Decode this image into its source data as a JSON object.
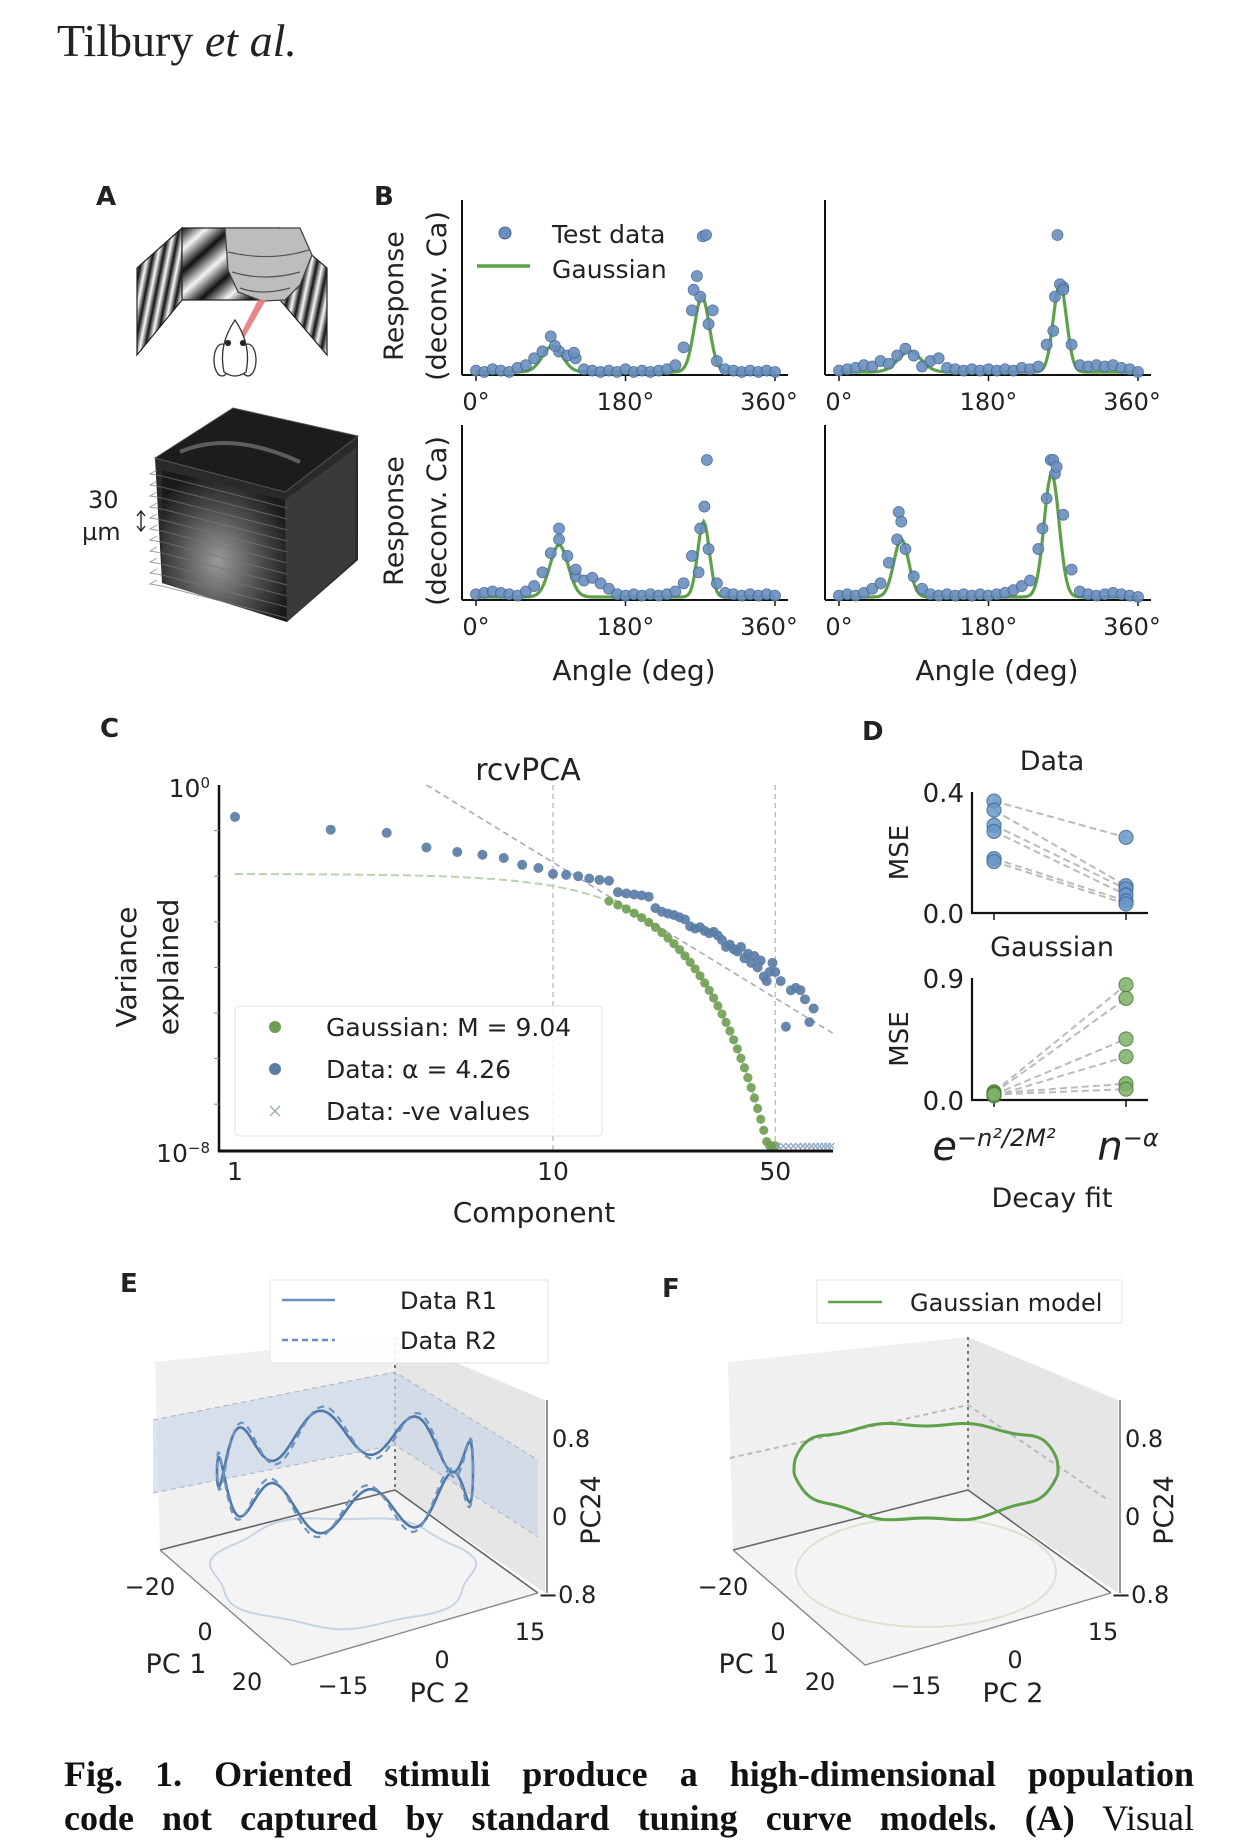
{
  "header": {
    "author": "Tilbury",
    "etal": "et al."
  },
  "panel_labels": {
    "a": "A",
    "b": "B",
    "c": "C",
    "d": "D",
    "e": "E",
    "f": "F"
  },
  "panel_a": {
    "scale_value": "30",
    "scale_unit": "µm"
  },
  "caption": {
    "line1": "Fig. 1. Oriented stimuli produce a high-dimensional population",
    "line2_bold": "code not captured by standard tuning curve models. (A)",
    "line2_rest": "Visual"
  },
  "colors": {
    "data_blue": "#6a8fbf",
    "data_blue_edge": "#44678f",
    "gaussian_green": "#5fa04a",
    "green_point": "#6e9e52",
    "band_blue": "#c9d6e8"
  },
  "chart_data": [
    {
      "id": "B1",
      "type": "scatter+line",
      "ylabel_line1": "Response",
      "ylabel_line2": "(deconv. Ca)",
      "xlabel": "",
      "xticks": [
        "0°",
        "180°",
        "360°"
      ],
      "xlim": [
        0,
        360
      ],
      "ylim": [
        0,
        1.25
      ],
      "angle_step": 10,
      "legend": {
        "points": "Test data",
        "line": "Gaussian"
      },
      "values": [
        0.01,
        0.0,
        0.02,
        0.01,
        0.0,
        0.03,
        0.05,
        0.1,
        0.15,
        0.26,
        0.15,
        0.12,
        0.1,
        0.02,
        0.01,
        0.0,
        0.01,
        0.0,
        0.02,
        0.0,
        0.01,
        0.0,
        0.01,
        0.02,
        0.05,
        0.18,
        0.45,
        0.55,
        0.35,
        0.08,
        0.02,
        0.01,
        0.0,
        0.01,
        0.0,
        0.01,
        0.0
      ],
      "extra_points": [
        [
          262,
          0.6
        ],
        [
          266,
          0.7
        ],
        [
          273,
          0.99
        ],
        [
          277,
          1.0
        ],
        [
          285,
          0.45
        ],
        [
          95,
          0.19
        ],
        [
          118,
          0.14
        ]
      ],
      "fit_peaks": [
        {
          "mu": 92,
          "amp": 0.19,
          "sigma": 12
        },
        {
          "mu": 272,
          "amp": 0.55,
          "sigma": 9
        }
      ]
    },
    {
      "id": "B2",
      "type": "scatter+line",
      "xticks": [
        "0°",
        "180°",
        "360°"
      ],
      "xlim": [
        0,
        360
      ],
      "ylim": [
        0,
        1.25
      ],
      "angle_step": 10,
      "values": [
        0.01,
        0.02,
        0.03,
        0.05,
        0.04,
        0.08,
        0.06,
        0.12,
        0.17,
        0.12,
        0.04,
        0.08,
        0.1,
        0.03,
        0.02,
        0.01,
        0.02,
        0.01,
        0.02,
        0.01,
        0.02,
        0.01,
        0.03,
        0.02,
        0.04,
        0.2,
        0.55,
        0.62,
        0.2,
        0.05,
        0.04,
        0.05,
        0.04,
        0.05,
        0.03,
        0.02,
        0.0
      ],
      "extra_points": [
        [
          263,
          1.0
        ],
        [
          266,
          0.64
        ],
        [
          270,
          0.6
        ],
        [
          258,
          0.3
        ]
      ],
      "fit_peaks": [
        {
          "mu": 85,
          "amp": 0.15,
          "sigma": 14
        },
        {
          "mu": 266,
          "amp": 0.64,
          "sigma": 8
        }
      ]
    },
    {
      "id": "B3",
      "type": "scatter+line",
      "ylabel_line1": "Response",
      "ylabel_line2": "(deconv. Ca)",
      "xlabel": "Angle (deg)",
      "xticks": [
        "0°",
        "180°",
        "360°"
      ],
      "xlim": [
        0,
        360
      ],
      "ylim": [
        0,
        1.25
      ],
      "angle_step": 10,
      "values": [
        0.02,
        0.03,
        0.04,
        0.03,
        0.02,
        0.01,
        0.04,
        0.08,
        0.18,
        0.32,
        0.42,
        0.3,
        0.15,
        0.12,
        0.14,
        0.1,
        0.06,
        0.02,
        0.01,
        0.02,
        0.01,
        0.02,
        0.01,
        0.02,
        0.04,
        0.1,
        0.3,
        0.5,
        0.35,
        0.1,
        0.03,
        0.02,
        0.01,
        0.02,
        0.01,
        0.02,
        0.01
      ],
      "extra_points": [
        [
          100,
          0.5
        ],
        [
          275,
          0.66
        ],
        [
          278,
          1.0
        ],
        [
          268,
          0.18
        ],
        [
          120,
          0.2
        ]
      ],
      "fit_peaks": [
        {
          "mu": 100,
          "amp": 0.38,
          "sigma": 11
        },
        {
          "mu": 274,
          "amp": 0.55,
          "sigma": 7
        }
      ]
    },
    {
      "id": "B4",
      "type": "scatter+line",
      "xlabel": "Angle (deg)",
      "xticks": [
        "0°",
        "180°",
        "360°"
      ],
      "xlim": [
        0,
        360
      ],
      "ylim": [
        0,
        1.25
      ],
      "angle_step": 10,
      "values": [
        0.01,
        0.02,
        0.01,
        0.03,
        0.06,
        0.1,
        0.25,
        0.42,
        0.35,
        0.15,
        0.06,
        0.02,
        0.01,
        0.02,
        0.01,
        0.02,
        0.01,
        0.02,
        0.01,
        0.02,
        0.03,
        0.05,
        0.08,
        0.12,
        0.35,
        0.72,
        0.9,
        0.6,
        0.2,
        0.04,
        0.02,
        0.01,
        0.02,
        0.03,
        0.02,
        0.01,
        0.0
      ],
      "extra_points": [
        [
          72,
          0.62
        ],
        [
          75,
          0.55
        ],
        [
          255,
          1.0
        ],
        [
          258,
          1.0
        ],
        [
          262,
          0.95
        ],
        [
          245,
          0.5
        ]
      ],
      "fit_peaks": [
        {
          "mu": 75,
          "amp": 0.42,
          "sigma": 9
        },
        {
          "mu": 256,
          "amp": 0.9,
          "sigma": 9
        }
      ]
    },
    {
      "id": "C",
      "type": "scatter",
      "title": "rcvPCA",
      "xlabel": "Component",
      "ylabel_line1": "Variance",
      "ylabel_line2": "explained",
      "xscale": "log",
      "yscale": "log",
      "xlim": [
        0.9,
        76
      ],
      "ylim_log10": [
        -8,
        0
      ],
      "xticks": [
        {
          "value": 1,
          "label": "1"
        },
        {
          "value": 10,
          "label": "10"
        },
        {
          "value": 50,
          "label": "50"
        }
      ],
      "yticks": [
        {
          "base": "10",
          "exp": "0",
          "log10": 0
        },
        {
          "base": "10",
          "exp": "−8",
          "log10": -8
        }
      ],
      "vlines": [
        10,
        50
      ],
      "legend": [
        "Gaussian: M = 9.04",
        "Data: α = 4.26",
        "Data: -ve values"
      ],
      "gaussian_M": 9.04,
      "gaussian_amp_log10": -1.95,
      "alpha": 4.26,
      "powerlaw_start": 4,
      "data_points_log10": [
        [
          1,
          -0.7
        ],
        [
          2,
          -0.98
        ],
        [
          3,
          -1.05
        ],
        [
          4,
          -1.37
        ],
        [
          5,
          -1.47
        ],
        [
          6,
          -1.53
        ],
        [
          7,
          -1.6
        ],
        [
          8,
          -1.75
        ],
        [
          9,
          -1.82
        ],
        [
          10,
          -1.95
        ],
        [
          11,
          -1.97
        ],
        [
          12,
          -2.0
        ],
        [
          13,
          -2.05
        ],
        [
          14,
          -2.08
        ],
        [
          15,
          -2.1
        ],
        [
          16,
          -2.35
        ],
        [
          17,
          -2.38
        ],
        [
          18,
          -2.4
        ],
        [
          19,
          -2.42
        ],
        [
          20,
          -2.45
        ],
        [
          21,
          -2.7
        ],
        [
          22,
          -2.78
        ],
        [
          23,
          -2.82
        ],
        [
          24,
          -2.85
        ],
        [
          25,
          -2.9
        ],
        [
          26,
          -2.95
        ],
        [
          27,
          -3.1
        ],
        [
          28,
          -3.15
        ],
        [
          29,
          -3.12
        ],
        [
          30,
          -3.2
        ],
        [
          31,
          -3.25
        ],
        [
          32,
          -3.22
        ],
        [
          33,
          -3.3
        ],
        [
          34,
          -3.4
        ],
        [
          35,
          -3.55
        ],
        [
          36,
          -3.5
        ],
        [
          37,
          -3.6
        ],
        [
          38,
          -3.65
        ],
        [
          39,
          -3.55
        ],
        [
          40,
          -3.8
        ],
        [
          41,
          -3.7
        ],
        [
          42,
          -3.9
        ],
        [
          43,
          -3.75
        ],
        [
          44,
          -4.0
        ],
        [
          45,
          -3.85
        ],
        [
          46,
          -4.2
        ],
        [
          47,
          -4.3
        ],
        [
          48,
          -4.1
        ],
        [
          49,
          -3.9
        ],
        [
          50,
          -4.1
        ],
        [
          52,
          -4.3
        ],
        [
          54,
          -5.3
        ],
        [
          56,
          -4.5
        ],
        [
          58,
          -4.45
        ],
        [
          60,
          -4.5
        ],
        [
          62,
          -4.7
        ],
        [
          64,
          -5.2
        ],
        [
          66,
          -4.9
        ]
      ],
      "gaussian_points_range": [
        15,
        50
      ],
      "negative_value_components": [
        51,
        53,
        55,
        57,
        59,
        61,
        63,
        65,
        67,
        69,
        71,
        73,
        75
      ]
    },
    {
      "id": "D-data",
      "type": "paired-scatter",
      "title": "Data",
      "ylabel": "MSE",
      "ylim": [
        0,
        0.4
      ],
      "yticks": [
        "0.4",
        "0.0"
      ],
      "categories": [
        {
          "base": "e",
          "exp": "−n²/2M²"
        },
        {
          "base": "n",
          "exp": "−α"
        }
      ],
      "pairs": [
        [
          0.37,
          0.25
        ],
        [
          0.34,
          0.09
        ],
        [
          0.29,
          0.08
        ],
        [
          0.27,
          0.06
        ],
        [
          0.18,
          0.04
        ],
        [
          0.17,
          0.03
        ]
      ]
    },
    {
      "id": "D-gaussian",
      "type": "paired-scatter",
      "title": "Gaussian",
      "ylabel": "MSE",
      "ylim": [
        0,
        0.9
      ],
      "yticks": [
        "0.9",
        "0.0"
      ],
      "xlabel": "Decay fit",
      "pairs": [
        [
          0.06,
          0.85
        ],
        [
          0.05,
          0.75
        ],
        [
          0.04,
          0.45
        ],
        [
          0.03,
          0.32
        ],
        [
          0.05,
          0.12
        ],
        [
          0.04,
          0.08
        ]
      ]
    },
    {
      "id": "E",
      "type": "3d-line",
      "legend": [
        {
          "name": "Data R1",
          "style": "solid"
        },
        {
          "name": "Data R2",
          "style": "dashed"
        }
      ],
      "axes": {
        "x": {
          "label": "PC 1",
          "ticks": [
            "−20",
            "0",
            "20"
          ]
        },
        "y": {
          "label": "PC 2",
          "ticks": [
            "−15",
            "0",
            "15"
          ]
        },
        "z": {
          "label": "PC24",
          "ticks": [
            "0.8",
            "0",
            "−0.8"
          ]
        }
      },
      "oscillations_per_loop": 8
    },
    {
      "id": "F",
      "type": "3d-line",
      "legend": [
        {
          "name": "Gaussian model",
          "style": "solid"
        }
      ],
      "axes": {
        "x": {
          "label": "PC 1",
          "ticks": [
            "−20",
            "0",
            "20"
          ]
        },
        "y": {
          "label": "PC 2",
          "ticks": [
            "−15",
            "0",
            "15"
          ]
        },
        "z": {
          "label": "PC24",
          "ticks": [
            "0.8",
            "0",
            "−0.8"
          ]
        }
      }
    }
  ]
}
